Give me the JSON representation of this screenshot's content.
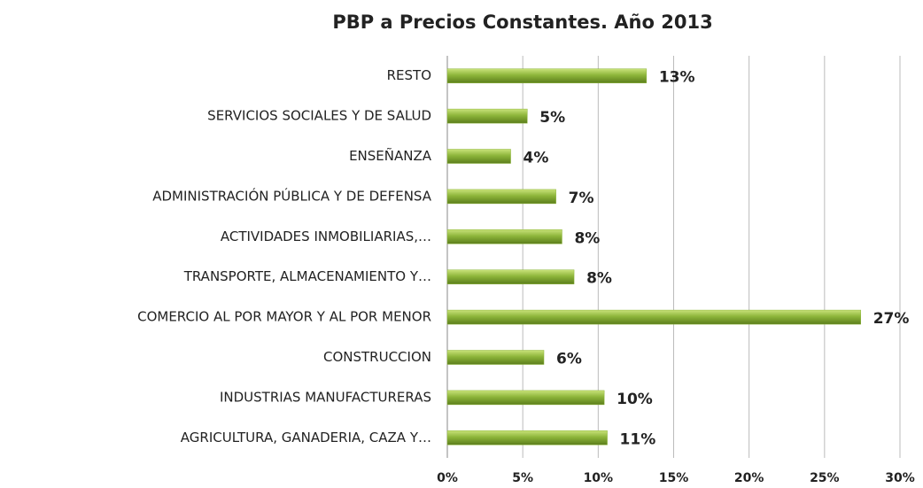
{
  "chart_data": {
    "type": "barh",
    "title": "PBP a Precios Constantes. Año 2013",
    "categories": [
      "RESTO",
      "SERVICIOS SOCIALES Y DE SALUD",
      "ENSEÑANZA",
      "ADMINISTRACIÓN PÚBLICA Y DE DEFENSA",
      "ACTIVIDADES INMOBILIARIAS,…",
      "TRANSPORTE, ALMACENAMIENTO Y…",
      "COMERCIO AL POR MAYOR Y AL POR MENOR",
      "CONSTRUCCION",
      "INDUSTRIAS MANUFACTURERAS",
      "AGRICULTURA, GANADERIA, CAZA Y…"
    ],
    "values": [
      13.2,
      5.3,
      4.2,
      7.2,
      7.6,
      8.4,
      27.4,
      6.4,
      10.4,
      10.6
    ],
    "value_labels": [
      "13%",
      "5%",
      "4%",
      "7%",
      "8%",
      "8%",
      "27%",
      "6%",
      "10%",
      "11%"
    ],
    "color": "#8db53a",
    "xlim": [
      0,
      30
    ],
    "xticks": [
      {
        "value": 0,
        "label": "0%"
      },
      {
        "value": 5,
        "label": "5%"
      },
      {
        "value": 10,
        "label": "10%"
      },
      {
        "value": 15,
        "label": "15%"
      },
      {
        "value": 20,
        "label": "20%"
      },
      {
        "value": 25,
        "label": "25%"
      },
      {
        "value": 30,
        "label": "30%"
      }
    ],
    "grid": true
  }
}
